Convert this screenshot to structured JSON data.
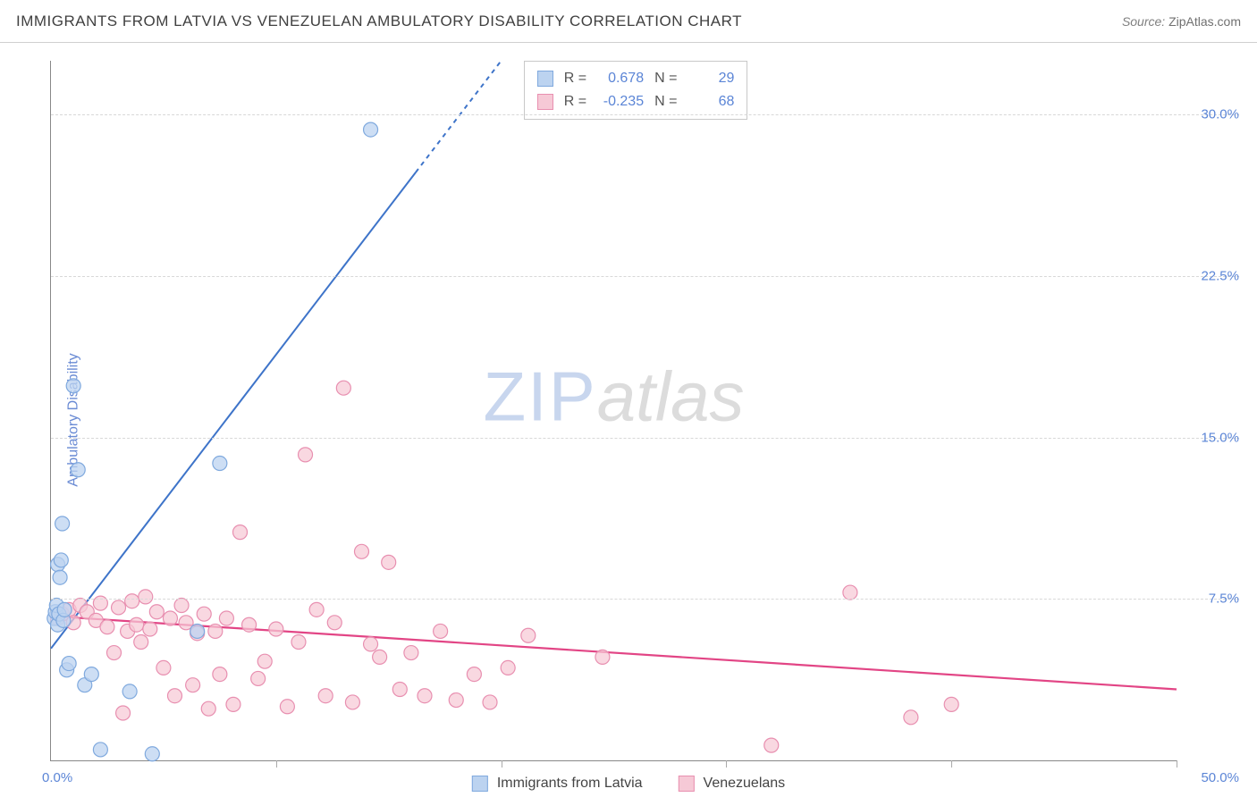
{
  "header": {
    "title": "IMMIGRANTS FROM LATVIA VS VENEZUELAN AMBULATORY DISABILITY CORRELATION CHART",
    "source_label": "Source: ",
    "source_value": "ZipAtlas.com"
  },
  "watermark": {
    "part1": "ZIP",
    "part2": "atlas"
  },
  "axes": {
    "ylabel": "Ambulatory Disability",
    "xlim": [
      0,
      50
    ],
    "ylim": [
      0,
      32.5
    ],
    "yticks": [
      7.5,
      15.0,
      22.5,
      30.0
    ],
    "ytick_labels": [
      "7.5%",
      "15.0%",
      "22.5%",
      "30.0%"
    ],
    "xticks": [
      10,
      20,
      30,
      40,
      50
    ],
    "x_origin_label": "0.0%",
    "x_max_label": "50.0%",
    "grid_color": "#d8d8d8",
    "axis_color": "#888888",
    "tick_label_color": "#5b85d6",
    "background_color": "#ffffff"
  },
  "series": [
    {
      "name": "Immigrants from Latvia",
      "color_fill": "#bcd3f0",
      "color_stroke": "#7fa9de",
      "marker_radius": 8,
      "marker_opacity": 0.75,
      "trend": {
        "x1": 0,
        "y1": 5.2,
        "x2": 20,
        "y2": 32.5,
        "dash_from_x": 16.2,
        "color": "#3e74c9",
        "width": 2
      },
      "stats": {
        "R": "0.678",
        "N": "29"
      },
      "points": [
        [
          0.15,
          6.6
        ],
        [
          0.2,
          6.9
        ],
        [
          0.25,
          7.2
        ],
        [
          0.3,
          6.3
        ],
        [
          0.3,
          9.1
        ],
        [
          0.35,
          6.8
        ],
        [
          0.4,
          8.5
        ],
        [
          0.45,
          9.3
        ],
        [
          0.5,
          11.0
        ],
        [
          0.55,
          6.5
        ],
        [
          0.6,
          7.0
        ],
        [
          0.7,
          4.2
        ],
        [
          0.8,
          4.5
        ],
        [
          1.0,
          17.4
        ],
        [
          1.2,
          13.5
        ],
        [
          1.5,
          3.5
        ],
        [
          1.8,
          4.0
        ],
        [
          2.2,
          0.5
        ],
        [
          3.5,
          3.2
        ],
        [
          4.5,
          0.3
        ],
        [
          6.5,
          6.0
        ],
        [
          7.5,
          13.8
        ],
        [
          14.2,
          29.3
        ]
      ]
    },
    {
      "name": "Venezuelans",
      "color_fill": "#f6c9d6",
      "color_stroke": "#e88fb0",
      "marker_radius": 8,
      "marker_opacity": 0.72,
      "trend": {
        "x1": 0,
        "y1": 6.7,
        "x2": 50,
        "y2": 3.3,
        "color": "#e24585",
        "width": 2.2
      },
      "stats": {
        "R": "-0.235",
        "N": "68"
      },
      "points": [
        [
          0.3,
          6.6
        ],
        [
          0.5,
          6.8
        ],
        [
          0.8,
          7.0
        ],
        [
          1.0,
          6.4
        ],
        [
          1.3,
          7.2
        ],
        [
          1.6,
          6.9
        ],
        [
          2.0,
          6.5
        ],
        [
          2.2,
          7.3
        ],
        [
          2.5,
          6.2
        ],
        [
          2.8,
          5.0
        ],
        [
          3.0,
          7.1
        ],
        [
          3.2,
          2.2
        ],
        [
          3.4,
          6.0
        ],
        [
          3.6,
          7.4
        ],
        [
          3.8,
          6.3
        ],
        [
          4.0,
          5.5
        ],
        [
          4.2,
          7.6
        ],
        [
          4.4,
          6.1
        ],
        [
          4.7,
          6.9
        ],
        [
          5.0,
          4.3
        ],
        [
          5.3,
          6.6
        ],
        [
          5.5,
          3.0
        ],
        [
          5.8,
          7.2
        ],
        [
          6.0,
          6.4
        ],
        [
          6.3,
          3.5
        ],
        [
          6.5,
          5.9
        ],
        [
          6.8,
          6.8
        ],
        [
          7.0,
          2.4
        ],
        [
          7.3,
          6.0
        ],
        [
          7.5,
          4.0
        ],
        [
          7.8,
          6.6
        ],
        [
          8.1,
          2.6
        ],
        [
          8.4,
          10.6
        ],
        [
          8.8,
          6.3
        ],
        [
          9.2,
          3.8
        ],
        [
          9.5,
          4.6
        ],
        [
          10.0,
          6.1
        ],
        [
          10.5,
          2.5
        ],
        [
          11.0,
          5.5
        ],
        [
          11.3,
          14.2
        ],
        [
          11.8,
          7.0
        ],
        [
          12.2,
          3.0
        ],
        [
          12.6,
          6.4
        ],
        [
          13.0,
          17.3
        ],
        [
          13.4,
          2.7
        ],
        [
          13.8,
          9.7
        ],
        [
          14.2,
          5.4
        ],
        [
          14.6,
          4.8
        ],
        [
          15.0,
          9.2
        ],
        [
          15.5,
          3.3
        ],
        [
          16.0,
          5.0
        ],
        [
          16.6,
          3.0
        ],
        [
          17.3,
          6.0
        ],
        [
          18.0,
          2.8
        ],
        [
          18.8,
          4.0
        ],
        [
          19.5,
          2.7
        ],
        [
          20.3,
          4.3
        ],
        [
          21.2,
          5.8
        ],
        [
          24.5,
          4.8
        ],
        [
          32.0,
          0.7
        ],
        [
          35.5,
          7.8
        ],
        [
          38.2,
          2.0
        ],
        [
          40.0,
          2.6
        ]
      ]
    }
  ],
  "stats_box": {
    "R_label": "R  =",
    "N_label": "N  ="
  },
  "legend": {
    "items": [
      {
        "label": "Immigrants from Latvia",
        "fill": "#bcd3f0",
        "stroke": "#7fa9de"
      },
      {
        "label": "Venezuelans",
        "fill": "#f6c9d6",
        "stroke": "#e88fb0"
      }
    ]
  }
}
